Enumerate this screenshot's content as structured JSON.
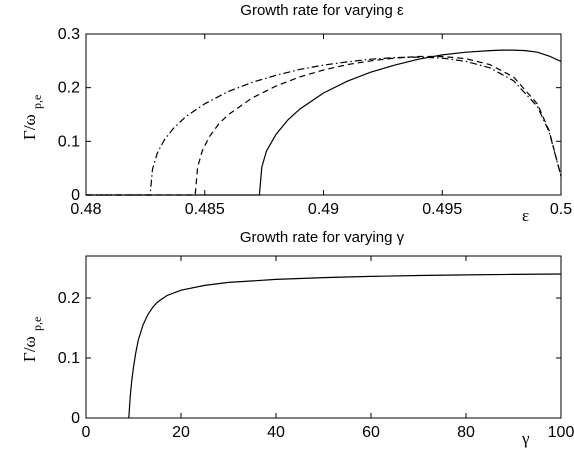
{
  "chart_data": [
    {
      "type": "line",
      "title": "Growth rate for varying ε",
      "xlabel": "ε",
      "ylabel_main": "Γ/ω",
      "ylabel_sub": "p,e",
      "xlim": [
        0.48,
        0.5
      ],
      "ylim": [
        0,
        0.3
      ],
      "xticks": [
        0.48,
        0.485,
        0.49,
        0.495,
        0.5
      ],
      "xtick_labels": [
        "0.48",
        "0.485",
        "0.49",
        "0.495",
        "0.5"
      ],
      "yticks": [
        0,
        0.1,
        0.2,
        0.3
      ],
      "ytick_labels": [
        "0",
        "0.1",
        "0.2",
        "0.3"
      ],
      "grid": false,
      "series": [
        {
          "style": "solid",
          "x": [
            0.48,
            0.4873,
            0.4874,
            0.4876,
            0.488,
            0.4885,
            0.489,
            0.49,
            0.491,
            0.492,
            0.493,
            0.494,
            0.495,
            0.496,
            0.497,
            0.4975,
            0.498,
            0.4985,
            0.499,
            0.4995,
            0.5
          ],
          "y": [
            0,
            0,
            0.052,
            0.082,
            0.113,
            0.14,
            0.16,
            0.19,
            0.212,
            0.229,
            0.242,
            0.253,
            0.261,
            0.266,
            0.269,
            0.27,
            0.27,
            0.269,
            0.266,
            0.259,
            0.249
          ]
        },
        {
          "style": "dashed",
          "x": [
            0.48,
            0.4846,
            0.4847,
            0.4849,
            0.4852,
            0.4856,
            0.486,
            0.487,
            0.488,
            0.489,
            0.49,
            0.491,
            0.492,
            0.493,
            0.494,
            0.495,
            0.496,
            0.497,
            0.498,
            0.499,
            0.4995,
            0.5
          ],
          "y": [
            0,
            0,
            0.052,
            0.083,
            0.109,
            0.133,
            0.15,
            0.181,
            0.203,
            0.22,
            0.233,
            0.243,
            0.25,
            0.255,
            0.258,
            0.258,
            0.254,
            0.243,
            0.22,
            0.17,
            0.12,
            0.035
          ]
        },
        {
          "style": "dashdot",
          "x": [
            0.48,
            0.4827,
            0.4828,
            0.483,
            0.4833,
            0.4837,
            0.4842,
            0.485,
            0.486,
            0.487,
            0.488,
            0.489,
            0.49,
            0.491,
            0.492,
            0.493,
            0.494,
            0.495,
            0.496,
            0.497,
            0.498,
            0.499,
            0.4995,
            0.5
          ],
          "y": [
            0,
            0,
            0.048,
            0.078,
            0.103,
            0.125,
            0.146,
            0.17,
            0.193,
            0.21,
            0.223,
            0.234,
            0.242,
            0.248,
            0.253,
            0.256,
            0.257,
            0.255,
            0.249,
            0.237,
            0.213,
            0.165,
            0.118,
            0.035
          ]
        }
      ]
    },
    {
      "type": "line",
      "title": "Growth rate for varying γ",
      "xlabel": "γ",
      "ylabel_main": "Γ/ω",
      "ylabel_sub": "p,e",
      "xlim": [
        0,
        100
      ],
      "ylim": [
        0,
        0.27
      ],
      "xticks": [
        0,
        20,
        40,
        60,
        80,
        100
      ],
      "xtick_labels": [
        "0",
        "20",
        "40",
        "60",
        "80",
        "100"
      ],
      "yticks": [
        0,
        0.1,
        0.2
      ],
      "ytick_labels": [
        "0",
        "0.1",
        "0.2"
      ],
      "grid": false,
      "series": [
        {
          "style": "solid",
          "x": [
            9.0,
            9.3,
            9.6,
            10.0,
            10.5,
            11.0,
            12.0,
            13.0,
            14.0,
            15.0,
            17.0,
            20.0,
            25.0,
            30.0,
            40.0,
            50.0,
            60.0,
            70.0,
            80.0,
            90.0,
            100.0
          ],
          "y": [
            0,
            0.035,
            0.06,
            0.085,
            0.11,
            0.13,
            0.155,
            0.172,
            0.184,
            0.193,
            0.204,
            0.213,
            0.221,
            0.226,
            0.231,
            0.234,
            0.236,
            0.2375,
            0.2385,
            0.2393,
            0.24
          ]
        }
      ]
    }
  ]
}
